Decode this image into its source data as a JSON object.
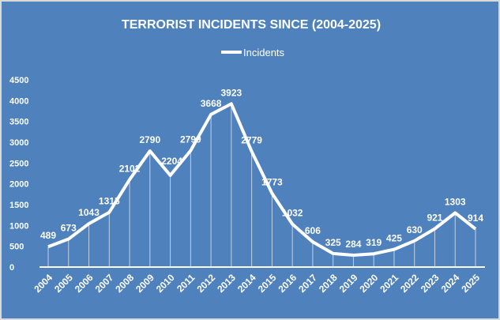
{
  "chart_data": {
    "type": "line",
    "title": "TERRORIST INCIDENTS SINCE (2004-2025)",
    "xlabel": "",
    "ylabel": "",
    "legend": {
      "entries": [
        "Incidents"
      ],
      "placement": "top"
    },
    "categories": [
      "2004",
      "2005",
      "2006",
      "2007",
      "2008",
      "2009",
      "2010",
      "2011",
      "2012",
      "2013",
      "2014",
      "2015",
      "2016",
      "2017",
      "2018",
      "2019",
      "2020",
      "2021",
      "2022",
      "2023",
      "2024",
      "2025"
    ],
    "series": [
      {
        "name": "Incidents",
        "values": [
          489,
          673,
          1043,
          1315,
          2102,
          2790,
          2204,
          2799,
          3668,
          3923,
          2779,
          1773,
          1032,
          606,
          325,
          284,
          319,
          425,
          630,
          921,
          1303,
          914
        ]
      }
    ],
    "ylim": [
      0,
      4500
    ],
    "yticks": [
      0,
      500,
      1000,
      1500,
      2000,
      2500,
      3000,
      3500,
      4000,
      4500
    ],
    "grid": false,
    "colors": {
      "background": "#4f81bd",
      "line": "#ffffff"
    }
  }
}
